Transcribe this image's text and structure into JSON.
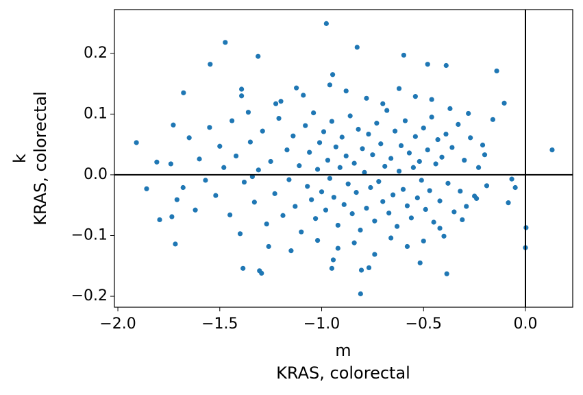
{
  "chart_data": {
    "type": "scatter",
    "color": "#1f77b4",
    "xlabel": [
      "m",
      "KRAS, colorectal"
    ],
    "ylabel": [
      "k",
      "KRAS, colorectal"
    ],
    "xlim": [
      -2.017,
      0.232
    ],
    "ylim": [
      -0.218,
      0.272
    ],
    "xticks": [
      {
        "value": -2.0,
        "label": "−2.0"
      },
      {
        "value": -1.5,
        "label": "−1.5"
      },
      {
        "value": -1.0,
        "label": "−1.0"
      },
      {
        "value": -0.5,
        "label": "−0.5"
      },
      {
        "value": 0,
        "label": "0.0"
      }
    ],
    "yticks": [
      {
        "value": -0.2,
        "label": "−0.2"
      },
      {
        "value": -0.1,
        "label": "−0.1"
      },
      {
        "value": 0,
        "label": "0.0"
      },
      {
        "value": 0.1,
        "label": "0.1"
      },
      {
        "value": 0.2,
        "label": "0.2"
      }
    ],
    "vline": 0,
    "hline": 0,
    "x": [
      -1.909,
      -1.859,
      -1.795,
      -1.809,
      -1.735,
      -1.718,
      -1.678,
      -1.728,
      -1.473,
      -1.547,
      -1.312,
      -1.393,
      -1.393,
      -1.386,
      -1.305,
      -1.295,
      -0.977,
      -0.946,
      -0.826,
      -0.597,
      -0.48,
      -0.389,
      -0.141,
      -0.104,
      0.131,
      -0.067,
      0.003,
      0.0,
      -0.084,
      -0.05,
      -0.809,
      -0.386,
      -0.517,
      -0.805,
      -0.768,
      -0.95,
      -0.943,
      -1.124,
      -1.225,
      -1.42,
      -1.38,
      -1.35,
      -1.33,
      -1.31,
      -1.29,
      -1.27,
      -1.25,
      -1.23,
      -1.21,
      -1.19,
      -1.17,
      -1.16,
      -1.14,
      -1.13,
      -1.11,
      -1.1,
      -1.08,
      -1.07,
      -1.06,
      -1.05,
      -1.04,
      -1.03,
      -1.02,
      -1.01,
      -1.0,
      -0.99,
      -0.98,
      -0.97,
      -0.96,
      -0.95,
      -0.94,
      -0.93,
      -0.92,
      -0.91,
      -0.9,
      -0.89,
      -0.88,
      -0.87,
      -0.86,
      -0.85,
      -0.84,
      -0.83,
      -0.82,
      -0.81,
      -0.8,
      -0.79,
      -0.78,
      -0.77,
      -0.76,
      -0.75,
      -0.74,
      -0.73,
      -0.72,
      -0.71,
      -0.7,
      -0.69,
      -0.68,
      -0.67,
      -0.66,
      -0.65,
      -0.64,
      -0.63,
      -0.62,
      -0.61,
      -0.6,
      -0.59,
      -0.58,
      -0.57,
      -0.56,
      -0.55,
      -0.54,
      -0.53,
      -0.52,
      -0.51,
      -0.5,
      -0.49,
      -0.48,
      -0.47,
      -0.46,
      -0.45,
      -0.44,
      -0.43,
      -0.42,
      -0.41,
      -0.4,
      -0.39,
      -0.38,
      -0.36,
      -0.35,
      -0.33,
      -0.32,
      -0.3,
      -0.29,
      -0.27,
      -0.25,
      -0.23,
      -0.21,
      -0.19,
      -0.16,
      -1.45,
      -1.48,
      -1.5,
      -1.52,
      -1.55,
      -1.57,
      -1.6,
      -1.62,
      -1.65,
      -1.68,
      -1.44,
      -1.4,
      -1.36,
      -1.34,
      -1.26,
      -1.2,
      -1.15,
      -1.09,
      -1.02,
      -0.96,
      -0.92,
      -0.88,
      -0.84,
      -0.78,
      -0.74,
      -0.7,
      -0.66,
      -0.62,
      -0.58,
      -0.54,
      -0.5,
      -0.46,
      -0.42,
      -0.37,
      -0.31,
      -0.28,
      -0.24,
      -0.2,
      -1.74,
      -1.71
    ],
    "values": [
      0.053,
      -0.023,
      -0.074,
      0.021,
      -0.069,
      -0.114,
      0.135,
      0.082,
      0.218,
      0.182,
      0.195,
      0.141,
      0.13,
      -0.154,
      -0.158,
      -0.162,
      0.249,
      0.165,
      0.21,
      0.197,
      0.182,
      0.18,
      0.171,
      0.118,
      0.041,
      -0.007,
      -0.087,
      -0.12,
      -0.046,
      -0.021,
      -0.196,
      -0.163,
      -0.145,
      -0.157,
      -0.153,
      -0.154,
      -0.14,
      0.143,
      0.117,
      0.031,
      -0.012,
      0.054,
      -0.045,
      0.008,
      0.072,
      -0.081,
      0.022,
      -0.031,
      0.093,
      -0.067,
      0.041,
      -0.008,
      0.064,
      -0.052,
      0.015,
      -0.094,
      0.081,
      -0.019,
      0.037,
      -0.041,
      0.102,
      -0.072,
      0.009,
      0.053,
      -0.028,
      0.071,
      -0.058,
      0.024,
      -0.006,
      0.088,
      -0.037,
      0.046,
      -0.083,
      0.012,
      0.062,
      -0.049,
      0.031,
      -0.015,
      0.097,
      -0.064,
      0.019,
      -0.029,
      0.075,
      -0.091,
      0.043,
      0.004,
      -0.055,
      0.067,
      -0.021,
      0.033,
      -0.076,
      0.085,
      -0.011,
      0.051,
      -0.044,
      0.014,
      0.106,
      -0.063,
      0.027,
      -0.033,
      0.072,
      -0.085,
      0.006,
      0.048,
      -0.024,
      0.089,
      -0.051,
      0.036,
      -0.071,
      0.012,
      0.063,
      -0.038,
      0.022,
      -0.009,
      0.077,
      -0.057,
      0.041,
      -0.026,
      0.095,
      -0.078,
      0.018,
      0.058,
      -0.043,
      0.029,
      -0.101,
      0.067,
      -0.014,
      0.045,
      -0.061,
      0.083,
      -0.027,
      0.024,
      -0.052,
      0.061,
      -0.035,
      0.012,
      0.049,
      -0.018,
      0.091,
      -0.066,
      0.012,
      0.047,
      -0.034,
      0.078,
      -0.009,
      0.026,
      -0.058,
      0.061,
      -0.021,
      0.089,
      -0.097,
      0.103,
      -0.003,
      -0.118,
      0.121,
      -0.125,
      0.131,
      -0.108,
      0.148,
      -0.121,
      0.138,
      -0.112,
      0.126,
      -0.131,
      0.117,
      -0.104,
      0.142,
      -0.118,
      0.129,
      -0.109,
      0.124,
      -0.088,
      0.109,
      -0.074,
      0.101,
      -0.039,
      0.033,
      0.018,
      -0.041
    ]
  }
}
